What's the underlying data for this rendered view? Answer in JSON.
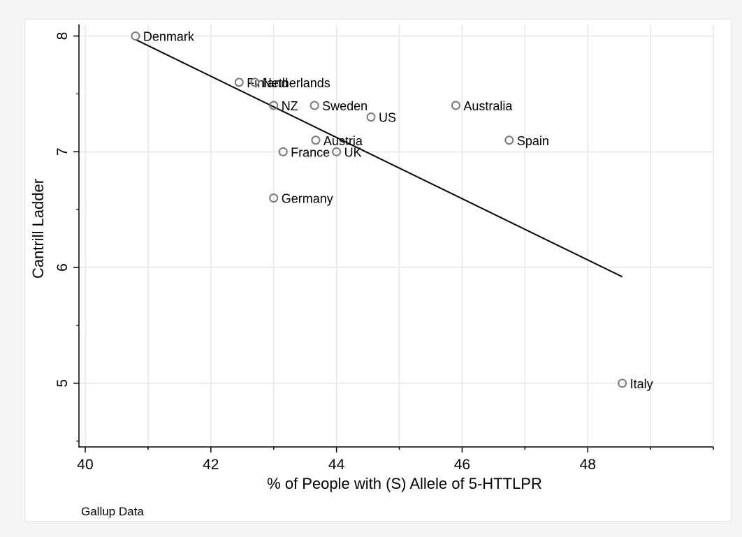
{
  "chart_data": {
    "type": "scatter",
    "xlabel": "% of People with (S) Allele of 5-HTTLPR",
    "ylabel": "Cantrill Ladder",
    "note": "Gallup Data",
    "xlim": [
      39.9,
      50
    ],
    "ylim": [
      4.45,
      8.1
    ],
    "xticks": [
      40,
      42,
      44,
      46,
      48
    ],
    "yticks": [
      5,
      6,
      7,
      8
    ],
    "grid": true,
    "points": [
      {
        "label": "Denmark",
        "x": 40.8,
        "y": 8.0
      },
      {
        "label": "Finland",
        "x": 42.45,
        "y": 7.6
      },
      {
        "label": "Netherlands",
        "x": 42.7,
        "y": 7.6
      },
      {
        "label": "NZ",
        "x": 43.0,
        "y": 7.4
      },
      {
        "label": "Sweden",
        "x": 43.65,
        "y": 7.4
      },
      {
        "label": "US",
        "x": 44.55,
        "y": 7.3
      },
      {
        "label": "Australia",
        "x": 45.9,
        "y": 7.4
      },
      {
        "label": "Austria",
        "x": 43.67,
        "y": 7.1
      },
      {
        "label": "Spain",
        "x": 46.75,
        "y": 7.1
      },
      {
        "label": "France",
        "x": 43.15,
        "y": 7.0
      },
      {
        "label": "UK",
        "x": 44.0,
        "y": 7.0
      },
      {
        "label": "Germany",
        "x": 43.0,
        "y": 6.6
      },
      {
        "label": "Italy",
        "x": 48.55,
        "y": 5.0
      }
    ],
    "fit_line": {
      "x": [
        40.8,
        48.55
      ],
      "y": [
        7.97,
        5.92
      ]
    }
  }
}
